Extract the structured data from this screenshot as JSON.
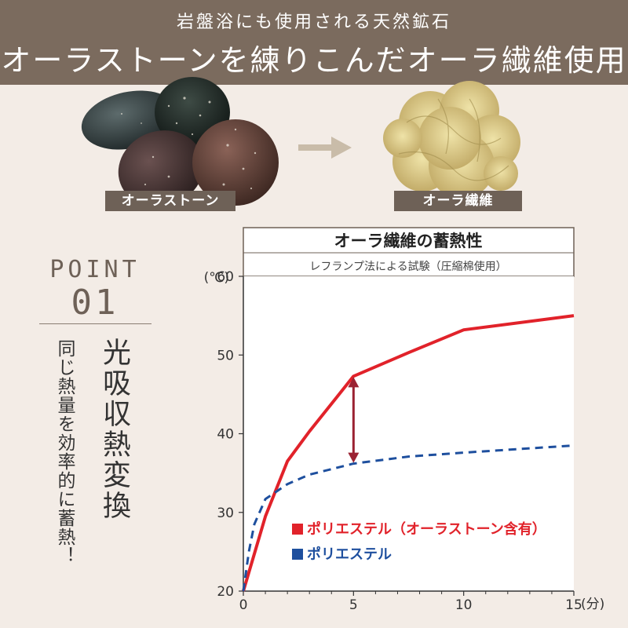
{
  "header": {
    "subtitle": "岩盤浴にも使用される天然鉱石",
    "title": "オーラストーンを練りこんだオーラ繊維使用"
  },
  "images": {
    "left_label": "オーラストーン",
    "right_label": "オーラ繊維"
  },
  "point": {
    "word": "POINT",
    "number": "01",
    "heading": "光吸収熱変換",
    "body": "同じ熱量を効率的に蓄熱！"
  },
  "colors": {
    "header_bg": "#7b6b5e",
    "series_aura": "#e1222a",
    "series_poly": "#1e4f9e",
    "arrow": "#9b2333"
  },
  "chart_data": {
    "type": "line",
    "title": "オーラ繊維の蓄熱性",
    "subtitle": "レフランプ法による試験（圧縮棉使用）",
    "y_unit": "(℃)",
    "x_unit": "(分)",
    "xlim": [
      0,
      15
    ],
    "ylim": [
      20,
      60
    ],
    "x_ticks": [
      0,
      5,
      10,
      15
    ],
    "y_ticks": [
      20,
      30,
      40,
      50,
      60
    ],
    "grid": false,
    "legend_position": "bottom-left",
    "series": [
      {
        "name": "ポリエステル（オーラストーン含有）",
        "style": "solid",
        "x": [
          0,
          1,
          2,
          3,
          4,
          5,
          7.5,
          10,
          15
        ],
        "y": [
          20,
          29.5,
          36.5,
          40.3,
          43.8,
          47.3,
          50.3,
          53.2,
          55
        ]
      },
      {
        "name": "ポリエステル",
        "style": "dashed",
        "x": [
          0,
          0.25,
          0.5,
          1,
          2,
          3,
          5,
          7.5,
          10,
          15
        ],
        "y": [
          20,
          25,
          28.5,
          31.7,
          33.6,
          34.8,
          36.2,
          37.1,
          37.6,
          38.5
        ]
      }
    ],
    "annotation": {
      "type": "double-arrow",
      "x": 5,
      "y_from": 36.2,
      "y_to": 47.3
    }
  }
}
